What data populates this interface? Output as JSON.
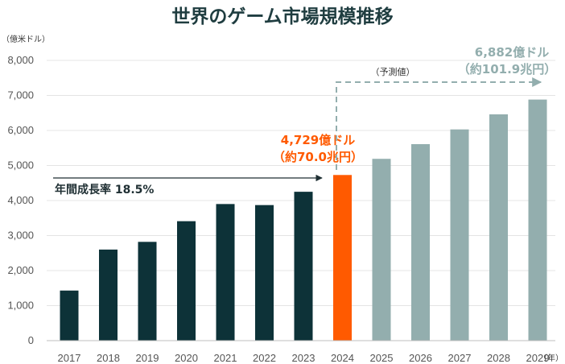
{
  "colors": {
    "actual": "#0d3238",
    "highlight": "#ff5a00",
    "forecast": "#93aeae",
    "title": "#1f3d40",
    "axis": "#bfbfbf",
    "grid": "#e4e4e4"
  },
  "annotations": {
    "cagr": "年間成長率 18.5%",
    "y2024_value": "4,729億ドル",
    "y2024_yen": "（約70.0兆円）",
    "y2029_value": "6,882億ドル",
    "y2029_yen": "（約101.9兆円）",
    "forecast_label": "（予測値）"
  },
  "chart_data": {
    "type": "bar",
    "title": "世界のゲーム市場規模推移",
    "ylabel": "（億米ドル）",
    "xlabel": "（年）",
    "ylim": [
      0,
      8000
    ],
    "yticks": [
      0,
      1000,
      2000,
      3000,
      4000,
      5000,
      6000,
      7000,
      8000
    ],
    "ytick_labels": [
      "0",
      "1,000",
      "2,000",
      "3,000",
      "4,000",
      "5,000",
      "6,000",
      "7,000",
      "8,000"
    ],
    "grid": true,
    "categories": [
      "2017",
      "2018",
      "2019",
      "2020",
      "2021",
      "2022",
      "2023",
      "2024",
      "2025",
      "2026",
      "2027",
      "2028",
      "2029"
    ],
    "values": [
      1430,
      2600,
      2820,
      3410,
      3900,
      3870,
      4250,
      4729,
      5190,
      5610,
      6030,
      6460,
      6882
    ],
    "bar_status": [
      "actual",
      "actual",
      "actual",
      "actual",
      "actual",
      "actual",
      "actual",
      "highlight",
      "forecast",
      "forecast",
      "forecast",
      "forecast",
      "forecast"
    ]
  }
}
